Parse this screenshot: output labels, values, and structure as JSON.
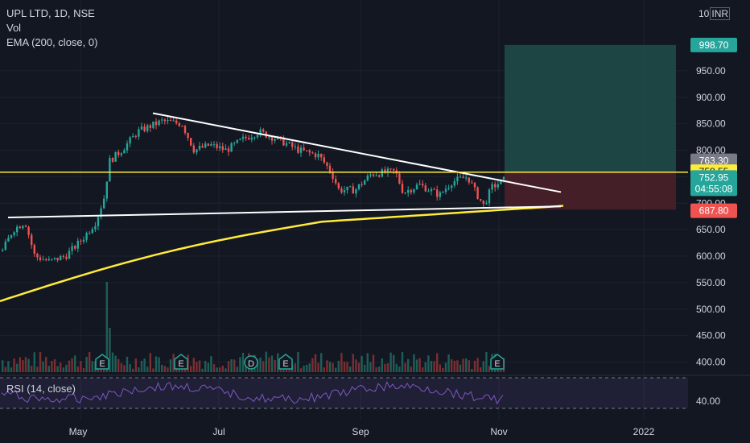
{
  "legend": {
    "symbol": "UPL LTD, 1D, NSE",
    "volume": "Vol",
    "ema": "EMA (200, close, 0)"
  },
  "rsi": {
    "label": "RSI (14, close)",
    "ticks": [
      "40.00"
    ]
  },
  "currency": {
    "prefix": "10",
    "code": "INR"
  },
  "price_tags": {
    "target": "998.70",
    "upper": "763.30",
    "resistance": "758.55",
    "last": "752.95",
    "countdown": "04:55:08",
    "stop": "687.80"
  },
  "colors": {
    "background": "#131722",
    "up": "#26a69a",
    "down": "#ef5350",
    "ema": "#ffeb3b",
    "trendline": "#ffffff",
    "rsi": "#7e57c2"
  },
  "chart_data": {
    "type": "candlestick",
    "y_ticks": [
      400,
      450,
      500,
      550,
      600,
      650,
      700,
      750,
      800,
      850,
      900,
      950
    ],
    "y_tick_labels": [
      "400.00",
      "450.00",
      "500.00",
      "550.00",
      "600.00",
      "650.00",
      "700.00",
      "750.00",
      "800.00",
      "850.00",
      "900.00",
      "950.00"
    ],
    "x_labels": [
      "May",
      "Jul",
      "Sep",
      "Nov",
      "2022"
    ],
    "events": [
      "E",
      "E",
      "D",
      "E",
      "E"
    ],
    "key_prices": {
      "resistance": 758.55,
      "target": 998.7,
      "stop": 687.8,
      "last": 752.95
    }
  }
}
